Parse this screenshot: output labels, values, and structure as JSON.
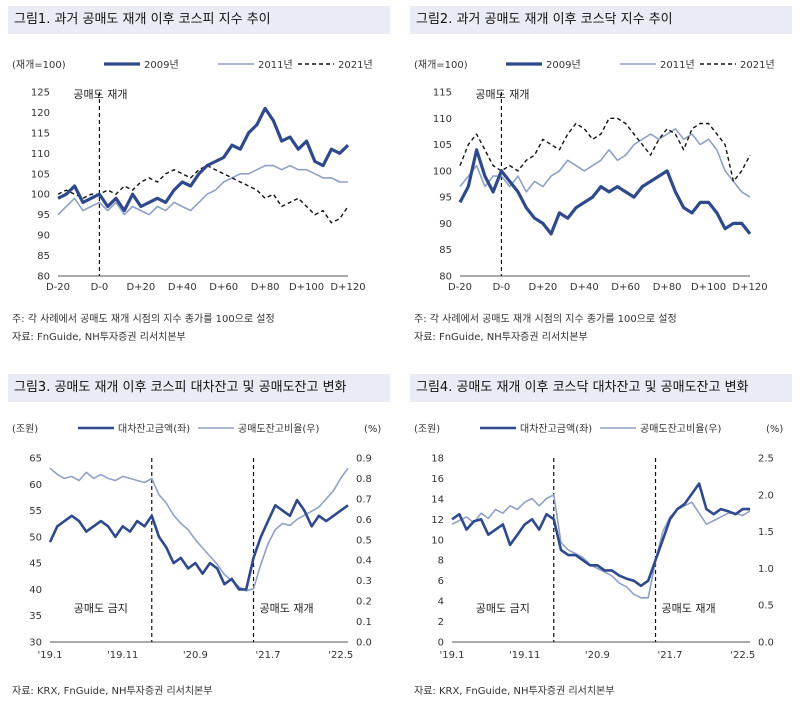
{
  "panels": [
    {
      "title": "그림1. 과거 공매도 재개 이후 코스피 지수 추이",
      "notes": [
        "주: 각 사례에서 공매도 재개 시점의 지수 종가를 100으로 설정",
        "자료: FnGuide, NH투자증권 리서치본부"
      ]
    },
    {
      "title": "그림2. 과거 공매도 재개 이후 코스닥 지수 추이",
      "notes": [
        "주: 각 사례에서 공매도 재개 시점의 지수 종가를 100으로 설정",
        "자료: FnGuide, NH투자증권 리서치본부"
      ]
    },
    {
      "title": "그림3. 공매도 재개 이후 코스피 대차잔고 및 공매도잔고 변화",
      "notes": [
        "자료: KRX, FnGuide, NH투자증권 리서치본부"
      ]
    },
    {
      "title": "그림4. 공매도 재개 이후 코스닥 대차잔고 및 공매도잔고 변화",
      "notes": [
        "자료: KRX, FnGuide, NH투자증권 리서치본부"
      ]
    }
  ],
  "chart_data": [
    {
      "type": "line",
      "unit_label": "(재개=100)",
      "annotation": "공매도 재개",
      "ylim": [
        80,
        125
      ],
      "yticks": [
        80,
        85,
        90,
        95,
        100,
        105,
        110,
        115,
        120,
        125
      ],
      "xlim": [
        -20,
        120
      ],
      "xticks": [
        -20,
        0,
        20,
        40,
        60,
        80,
        100,
        120
      ],
      "xtick_labels": [
        "D-20",
        "D-0",
        "D+20",
        "D+40",
        "D+60",
        "D+80",
        "D+100",
        "D+120"
      ],
      "event_x": 0,
      "series": [
        {
          "name": "2009년",
          "color": "#2e4a8c",
          "width": 3.2,
          "dash": "",
          "x": [
            -20,
            -16,
            -12,
            -8,
            -4,
            0,
            4,
            8,
            12,
            16,
            20,
            24,
            28,
            32,
            36,
            40,
            44,
            48,
            52,
            56,
            60,
            64,
            68,
            72,
            76,
            80,
            84,
            88,
            92,
            96,
            100,
            104,
            108,
            112,
            116,
            120
          ],
          "y": [
            99,
            100,
            102,
            98,
            99,
            100,
            97,
            99,
            96,
            100,
            97,
            98,
            99,
            98,
            101,
            103,
            102,
            105,
            107,
            108,
            109,
            112,
            111,
            115,
            117,
            121,
            118,
            113,
            114,
            111,
            113,
            108,
            107,
            111,
            110,
            112
          ]
        },
        {
          "name": "2011년",
          "color": "#8fa1c7",
          "width": 1.6,
          "dash": "",
          "x": [
            -20,
            -16,
            -12,
            -8,
            -4,
            0,
            4,
            8,
            12,
            16,
            20,
            24,
            28,
            32,
            36,
            40,
            44,
            48,
            52,
            56,
            60,
            64,
            68,
            72,
            76,
            80,
            84,
            88,
            92,
            96,
            100,
            104,
            108,
            112,
            116,
            120
          ],
          "y": [
            95,
            97,
            99,
            96,
            97,
            98,
            96,
            98,
            95,
            97,
            96,
            95,
            97,
            96,
            98,
            97,
            96,
            98,
            100,
            101,
            103,
            104,
            105,
            105,
            106,
            107,
            107,
            106,
            107,
            106,
            106,
            105,
            104,
            104,
            103,
            103
          ]
        },
        {
          "name": "2021년",
          "color": "#111111",
          "width": 1.4,
          "dash": "4,3",
          "x": [
            -20,
            -16,
            -12,
            -8,
            -4,
            0,
            4,
            8,
            12,
            16,
            20,
            24,
            28,
            32,
            36,
            40,
            44,
            48,
            52,
            56,
            60,
            64,
            68,
            72,
            76,
            80,
            84,
            88,
            92,
            96,
            100,
            104,
            108,
            112,
            116,
            120
          ],
          "y": [
            100,
            101,
            100,
            99,
            100,
            100,
            101,
            100,
            102,
            101,
            103,
            104,
            103,
            105,
            106,
            105,
            104,
            106,
            107,
            106,
            105,
            104,
            103,
            102,
            101,
            99,
            100,
            97,
            98,
            99,
            97,
            95,
            96,
            93,
            94,
            97
          ]
        }
      ]
    },
    {
      "type": "line",
      "unit_label": "(재개=100)",
      "annotation": "공매도 재개",
      "ylim": [
        80,
        115
      ],
      "yticks": [
        80,
        85,
        90,
        95,
        100,
        105,
        110,
        115
      ],
      "xlim": [
        -20,
        120
      ],
      "xticks": [
        -20,
        0,
        20,
        40,
        60,
        80,
        100,
        120
      ],
      "xtick_labels": [
        "D-20",
        "D-0",
        "D+20",
        "D+40",
        "D+60",
        "D+80",
        "D+100",
        "D+120"
      ],
      "event_x": 0,
      "series": [
        {
          "name": "2009년",
          "color": "#2e4a8c",
          "width": 3.2,
          "dash": "",
          "x": [
            -20,
            -16,
            -12,
            -8,
            -4,
            0,
            4,
            8,
            12,
            16,
            20,
            24,
            28,
            32,
            36,
            40,
            44,
            48,
            52,
            56,
            60,
            64,
            68,
            72,
            76,
            80,
            84,
            88,
            92,
            96,
            100,
            104,
            108,
            112,
            116,
            120
          ],
          "y": [
            94,
            97,
            104,
            99,
            96,
            100,
            98,
            96,
            93,
            91,
            90,
            88,
            92,
            91,
            93,
            94,
            95,
            97,
            96,
            97,
            96,
            95,
            97,
            98,
            99,
            100,
            96,
            93,
            92,
            94,
            94,
            92,
            89,
            90,
            90,
            88
          ]
        },
        {
          "name": "2011년",
          "color": "#8fa1c7",
          "width": 1.6,
          "dash": "",
          "x": [
            -20,
            -16,
            -12,
            -8,
            -4,
            0,
            4,
            8,
            12,
            16,
            20,
            24,
            28,
            32,
            36,
            40,
            44,
            48,
            52,
            56,
            60,
            64,
            68,
            72,
            76,
            80,
            84,
            88,
            92,
            96,
            100,
            104,
            108,
            112,
            116,
            120
          ],
          "y": [
            97,
            99,
            101,
            97,
            99,
            99,
            97,
            99,
            96,
            98,
            97,
            99,
            100,
            102,
            101,
            100,
            101,
            102,
            104,
            102,
            103,
            105,
            106,
            107,
            106,
            107,
            108,
            106,
            107,
            105,
            106,
            104,
            100,
            98,
            96,
            95
          ]
        },
        {
          "name": "2021년",
          "color": "#111111",
          "width": 1.4,
          "dash": "4,3",
          "x": [
            -20,
            -16,
            -12,
            -8,
            -4,
            0,
            4,
            8,
            12,
            16,
            20,
            24,
            28,
            32,
            36,
            40,
            44,
            48,
            52,
            56,
            60,
            64,
            68,
            72,
            76,
            80,
            84,
            88,
            92,
            96,
            100,
            104,
            108,
            112,
            116,
            120
          ],
          "y": [
            101,
            105,
            107,
            104,
            101,
            100,
            101,
            100,
            102,
            103,
            106,
            105,
            104,
            107,
            109,
            108,
            106,
            107,
            110,
            110,
            109,
            107,
            105,
            103,
            106,
            108,
            107,
            104,
            108,
            109,
            109,
            107,
            105,
            98,
            100,
            103
          ]
        }
      ]
    },
    {
      "type": "line",
      "unit_left": "(조원)",
      "unit_right": "(%)",
      "ylim": [
        30,
        65
      ],
      "yticks": [
        30,
        35,
        40,
        45,
        50,
        55,
        60,
        65
      ],
      "y2lim": [
        0.0,
        0.9
      ],
      "y2ticks": [
        0.0,
        0.1,
        0.2,
        0.3,
        0.4,
        0.5,
        0.6,
        0.7,
        0.8,
        0.9
      ],
      "y2tick_labels": [
        "0.0",
        "0.1",
        "0.2",
        "0.3",
        "0.4",
        "0.5",
        "0.6",
        "0.7",
        "0.8",
        "0.9"
      ],
      "xlim": [
        0,
        41
      ],
      "xticks": [
        0,
        10,
        20,
        30,
        40
      ],
      "xtick_labels": [
        "'19.1",
        "'19.11",
        "'20.9",
        "'21.7",
        "'22.5"
      ],
      "event_x": [
        14,
        28
      ],
      "annotations": [
        "공매도 금지",
        "공매도 재개"
      ],
      "series": [
        {
          "name": "대차잔고금액(좌)",
          "color": "#2e4a8c",
          "width": 2.6,
          "axis": "left",
          "x": [
            0,
            1,
            2,
            3,
            4,
            5,
            6,
            7,
            8,
            9,
            10,
            11,
            12,
            13,
            14,
            15,
            16,
            17,
            18,
            19,
            20,
            21,
            22,
            23,
            24,
            25,
            26,
            27,
            28,
            29,
            30,
            31,
            32,
            33,
            34,
            35,
            36,
            37,
            38,
            39,
            40,
            41
          ],
          "y": [
            49,
            52,
            53,
            54,
            53,
            51,
            52,
            53,
            52,
            50,
            52,
            51,
            53,
            52,
            54,
            50,
            48,
            45,
            46,
            44,
            45,
            43,
            45,
            44,
            41,
            42,
            40,
            40,
            46,
            50,
            53,
            56,
            55,
            54,
            57,
            55,
            52,
            54,
            53,
            54,
            55,
            56
          ]
        },
        {
          "name": "공매도잔고비율(우)",
          "color": "#8fa1c7",
          "width": 1.6,
          "axis": "right",
          "x": [
            0,
            1,
            2,
            3,
            4,
            5,
            6,
            7,
            8,
            9,
            10,
            11,
            12,
            13,
            14,
            15,
            16,
            17,
            18,
            19,
            20,
            21,
            22,
            23,
            24,
            25,
            26,
            27,
            28,
            29,
            30,
            31,
            32,
            33,
            34,
            35,
            36,
            37,
            38,
            39,
            40,
            41
          ],
          "y": [
            0.85,
            0.82,
            0.8,
            0.81,
            0.79,
            0.83,
            0.8,
            0.82,
            0.8,
            0.79,
            0.81,
            0.8,
            0.79,
            0.78,
            0.8,
            0.72,
            0.68,
            0.62,
            0.58,
            0.55,
            0.5,
            0.46,
            0.42,
            0.38,
            0.33,
            0.3,
            0.27,
            0.25,
            0.26,
            0.38,
            0.48,
            0.55,
            0.58,
            0.57,
            0.6,
            0.62,
            0.64,
            0.66,
            0.7,
            0.74,
            0.8,
            0.85
          ]
        }
      ]
    },
    {
      "type": "line",
      "unit_left": "(조원)",
      "unit_right": "(%)",
      "ylim": [
        0,
        18
      ],
      "yticks": [
        0,
        2,
        4,
        6,
        8,
        10,
        12,
        14,
        16,
        18
      ],
      "y2lim": [
        0.0,
        2.5
      ],
      "y2ticks": [
        0.0,
        0.5,
        1.0,
        1.5,
        2.0,
        2.5
      ],
      "y2tick_labels": [
        "0.0",
        "0.5",
        "1.0",
        "1.5",
        "2.0",
        "2.5"
      ],
      "xlim": [
        0,
        41
      ],
      "xticks": [
        0,
        10,
        20,
        30,
        40
      ],
      "xtick_labels": [
        "'19.1",
        "'19.11",
        "'20.9",
        "'21.7",
        "'22.5"
      ],
      "event_x": [
        14,
        28
      ],
      "annotations": [
        "공매도 금지",
        "공매도 재개"
      ],
      "series": [
        {
          "name": "대차잔고금액(좌)",
          "color": "#2e4a8c",
          "width": 2.6,
          "axis": "left",
          "x": [
            0,
            1,
            2,
            3,
            4,
            5,
            6,
            7,
            8,
            9,
            10,
            11,
            12,
            13,
            14,
            15,
            16,
            17,
            18,
            19,
            20,
            21,
            22,
            23,
            24,
            25,
            26,
            27,
            28,
            29,
            30,
            31,
            32,
            33,
            34,
            35,
            36,
            37,
            38,
            39,
            40,
            41
          ],
          "y": [
            12,
            12.5,
            11,
            11.8,
            12,
            10.5,
            11,
            11.5,
            9.5,
            10.5,
            11.5,
            12,
            11,
            12.5,
            12,
            9,
            8.5,
            8.5,
            8,
            7.5,
            7.5,
            7,
            7,
            6.5,
            6.2,
            6,
            5.5,
            6,
            8,
            10,
            12,
            13,
            13.5,
            14.5,
            15.5,
            13,
            12.5,
            13,
            12.8,
            12.5,
            13,
            13
          ]
        },
        {
          "name": "공매도잔고비율(우)",
          "color": "#8fa1c7",
          "width": 1.6,
          "axis": "right",
          "x": [
            0,
            1,
            2,
            3,
            4,
            5,
            6,
            7,
            8,
            9,
            10,
            11,
            12,
            13,
            14,
            15,
            16,
            17,
            18,
            19,
            20,
            21,
            22,
            23,
            24,
            25,
            26,
            27,
            28,
            29,
            30,
            31,
            32,
            33,
            34,
            35,
            36,
            37,
            38,
            39,
            40,
            41
          ],
          "y": [
            1.6,
            1.65,
            1.7,
            1.62,
            1.75,
            1.68,
            1.8,
            1.75,
            1.85,
            1.8,
            1.9,
            1.95,
            1.85,
            1.95,
            2.0,
            1.35,
            1.25,
            1.2,
            1.15,
            1.05,
            1.0,
            0.95,
            0.9,
            0.8,
            0.75,
            0.65,
            0.6,
            0.6,
            1.1,
            1.5,
            1.7,
            1.8,
            1.85,
            1.9,
            1.75,
            1.6,
            1.65,
            1.7,
            1.75,
            1.75,
            1.72,
            1.78
          ]
        }
      ]
    }
  ]
}
